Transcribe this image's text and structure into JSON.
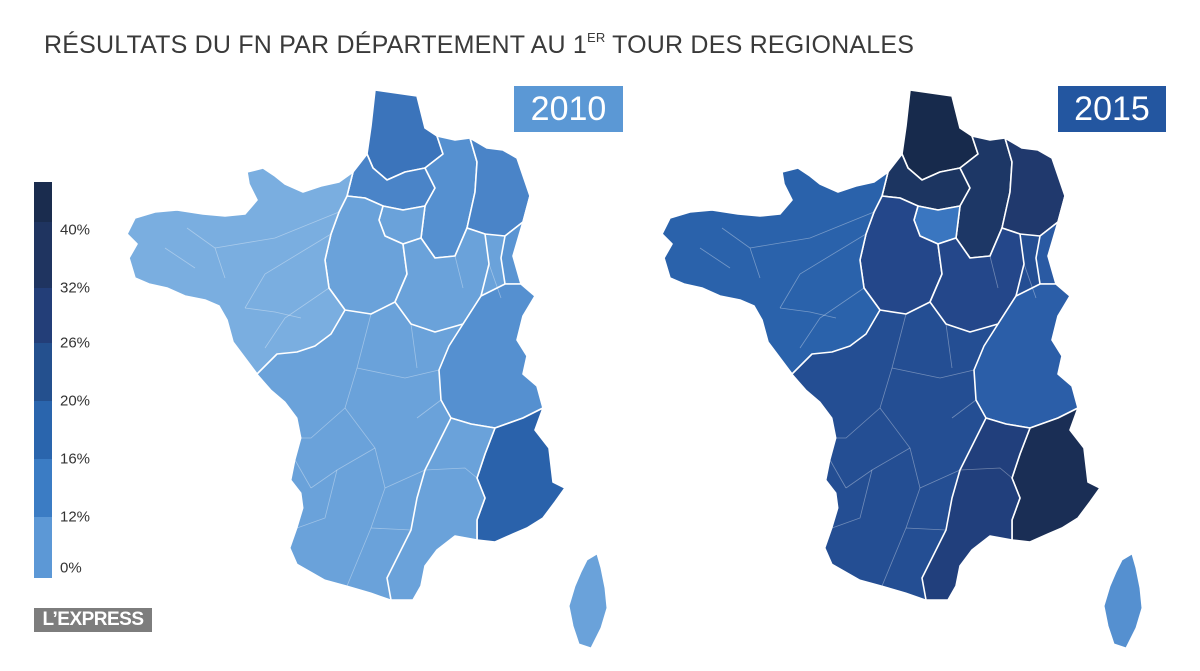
{
  "title": {
    "main": "RÉSULTATS DU FN PAR DÉPARTEMENT AU 1",
    "sup": "ER",
    "tail": " TOUR DES REGIONALES"
  },
  "legend": {
    "labels": [
      "40%",
      "32%",
      "26%",
      "20%",
      "16%",
      "12%",
      "0%"
    ],
    "colors": [
      "#1a2c4e",
      "#1f3460",
      "#233e78",
      "#24508e",
      "#2a65ad",
      "#3b7cc4",
      "#5c98d6",
      "#7aaee0"
    ]
  },
  "maps": [
    {
      "year": "2010",
      "badge_color": "#5b98d5",
      "base_color": "#6aa2da",
      "zones": [
        {
          "id": "nord",
          "color": "#3b74bb"
        },
        {
          "id": "picardie",
          "color": "#4a84c8"
        },
        {
          "id": "champagne",
          "color": "#5590d0"
        },
        {
          "id": "lorraine",
          "color": "#4a84c8"
        },
        {
          "id": "alsace",
          "color": "#5a95d3"
        },
        {
          "id": "idf",
          "color": "#6aa2da"
        },
        {
          "id": "centre",
          "color": "#6aa2da"
        },
        {
          "id": "bourgogne",
          "color": "#6aa2da"
        },
        {
          "id": "rhone-alpes",
          "color": "#5590d0"
        },
        {
          "id": "paca",
          "color": "#2a62ab"
        },
        {
          "id": "languedoc",
          "color": "#6aa2da"
        },
        {
          "id": "west",
          "color": "#7aaee0"
        },
        {
          "id": "corse",
          "color": "#6aa2da"
        }
      ]
    },
    {
      "year": "2015",
      "badge_color": "#2356a0",
      "base_color": "#244e93",
      "zones": [
        {
          "id": "nord",
          "color": "#172a4c"
        },
        {
          "id": "picardie",
          "color": "#1c3561"
        },
        {
          "id": "champagne",
          "color": "#1d3766"
        },
        {
          "id": "lorraine",
          "color": "#20396d"
        },
        {
          "id": "alsace",
          "color": "#2a5aa3"
        },
        {
          "id": "idf",
          "color": "#3a76c0"
        },
        {
          "id": "centre",
          "color": "#24478a"
        },
        {
          "id": "bourgogne",
          "color": "#24478a"
        },
        {
          "id": "rhone-alpes",
          "color": "#2b5ea8"
        },
        {
          "id": "paca",
          "color": "#1a2e55"
        },
        {
          "id": "languedoc",
          "color": "#213f7c"
        },
        {
          "id": "west",
          "color": "#2a62ab"
        },
        {
          "id": "corse",
          "color": "#5590d0"
        }
      ]
    }
  ],
  "logo": "L’EXPRESS"
}
